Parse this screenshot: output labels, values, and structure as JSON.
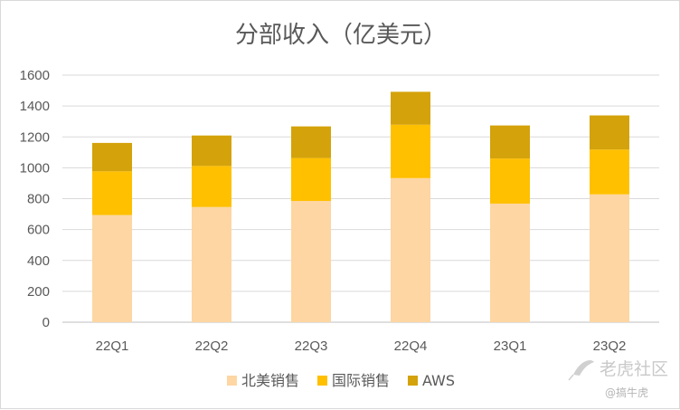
{
  "chart_data": {
    "type": "bar",
    "stacked": true,
    "title": "分部收入（亿美元）",
    "categories": [
      "22Q1",
      "22Q2",
      "22Q3",
      "22Q4",
      "23Q1",
      "23Q2"
    ],
    "series": [
      {
        "name": "北美销售",
        "color": "#fdd6a3",
        "values": [
          694,
          746,
          785,
          933,
          768,
          828
        ]
      },
      {
        "name": "国际销售",
        "color": "#ffc000",
        "values": [
          283,
          266,
          278,
          346,
          292,
          290
        ]
      },
      {
        "name": "AWS",
        "color": "#d4a20a",
        "values": [
          184,
          197,
          205,
          213,
          214,
          221
        ]
      }
    ],
    "yticks": [
      0,
      200,
      400,
      600,
      800,
      1000,
      1200,
      1400,
      1600
    ],
    "ylim": [
      0,
      1600
    ],
    "grid": true,
    "legend": "bottom"
  },
  "watermark": {
    "brand": "老虎社区",
    "handle": "@搞牛虎",
    "icon": "tiger-feather-icon"
  }
}
